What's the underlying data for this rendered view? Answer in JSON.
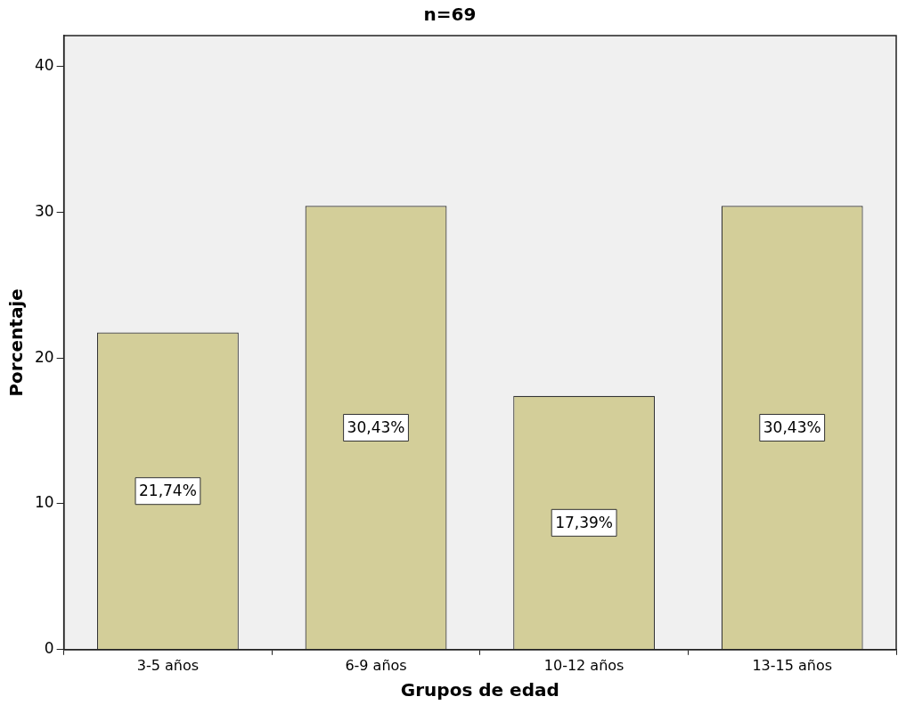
{
  "chart_data": {
    "type": "bar",
    "title": "n=69",
    "xlabel": "Grupos de edad",
    "ylabel": "Porcentaje",
    "categories": [
      "3-5 años",
      "6-9 años",
      "10-12 años",
      "13-15 años"
    ],
    "values": [
      21.74,
      30.43,
      17.39,
      30.43
    ],
    "value_labels": [
      "21,74%",
      "30,43%",
      "17,39%",
      "30,43%"
    ],
    "color": "#d3ce99",
    "ylim": [
      0,
      42.1
    ],
    "yticks": [
      0,
      10,
      20,
      30,
      40
    ],
    "legend": false
  }
}
